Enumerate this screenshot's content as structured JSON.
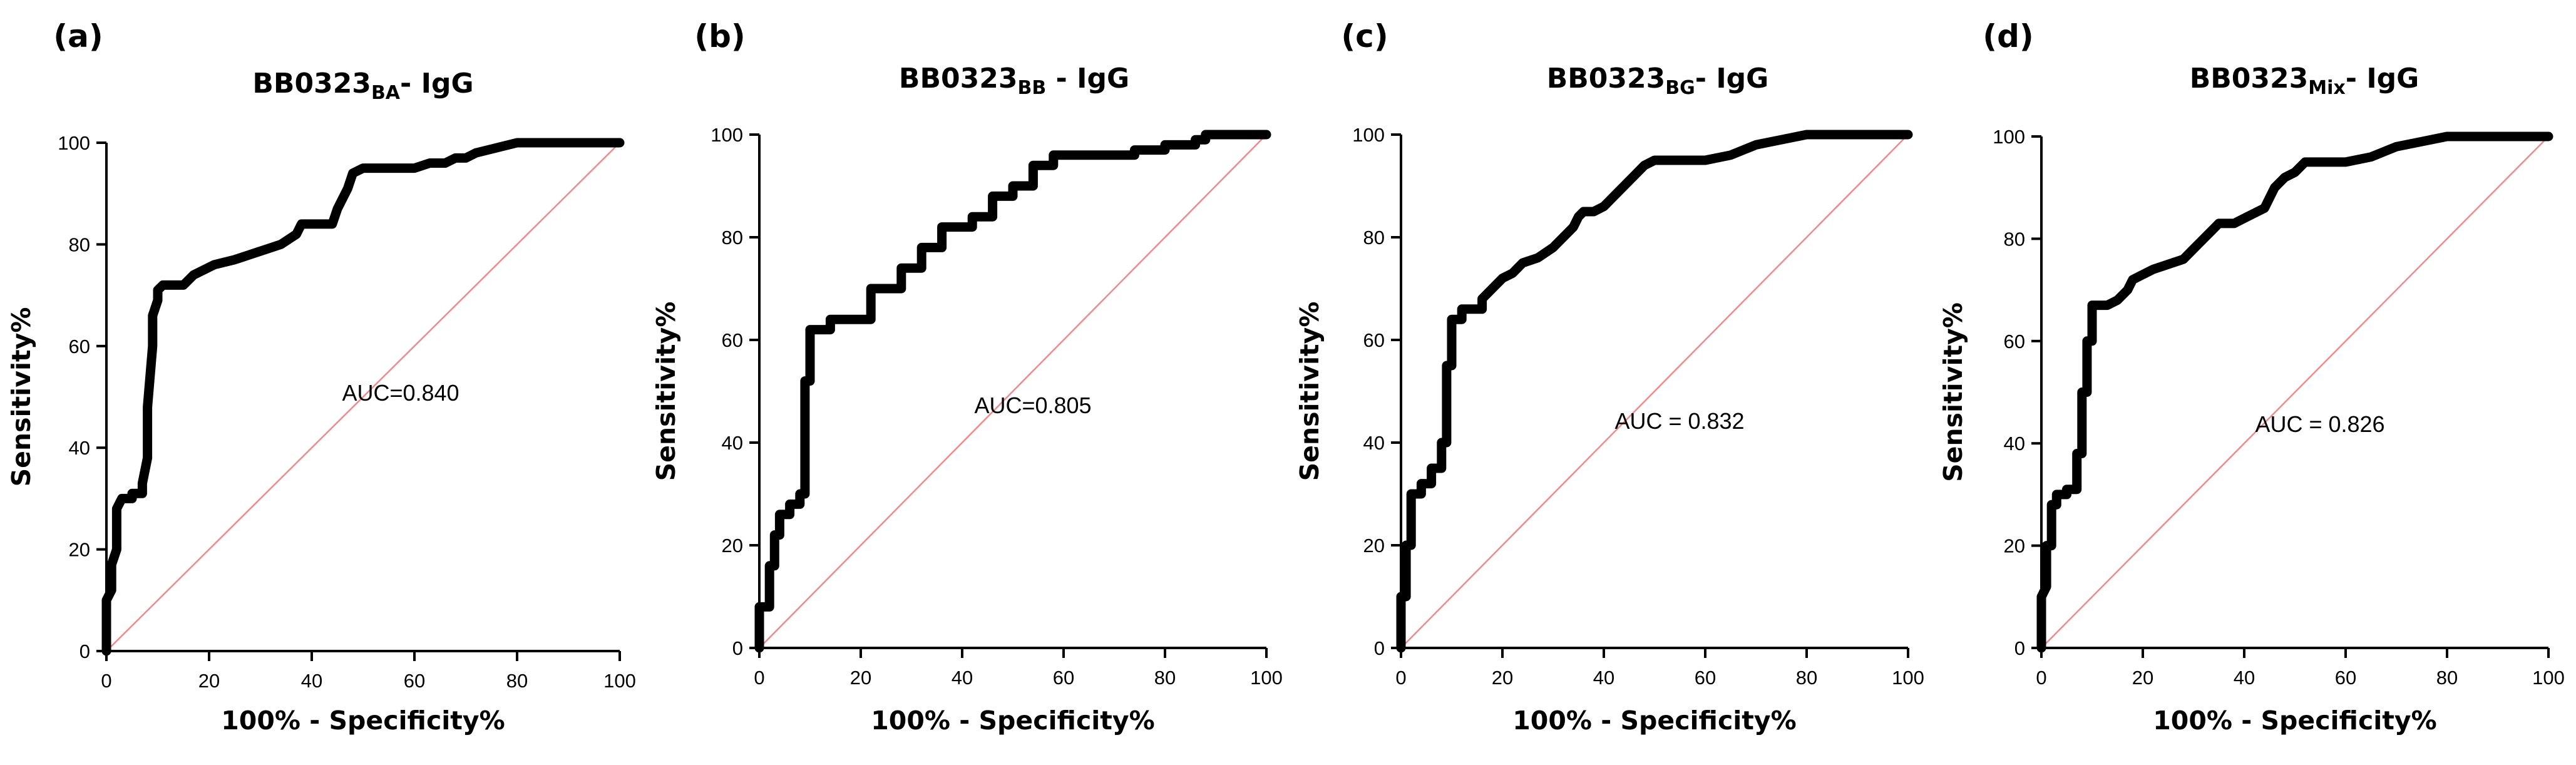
{
  "chart_data": [
    {
      "type": "line",
      "panel_label": "(a)",
      "title_main": "BB0323",
      "title_sub": "BA",
      "title_suffix": "- IgG",
      "xlabel": "100% - Specificity%",
      "ylabel": "Sensitivity%",
      "annotation": "AUC=0.840",
      "xlim": [
        0,
        100
      ],
      "ylim": [
        0,
        100
      ],
      "xticks": [
        "0",
        "20",
        "40",
        "60",
        "80",
        "100"
      ],
      "yticks": [
        "0",
        "20",
        "40",
        "60",
        "80",
        "100"
      ],
      "series": [
        {
          "name": "ROC",
          "x": [
            0,
            0,
            1,
            1,
            2,
            2,
            3,
            3,
            5,
            5,
            7,
            7,
            8,
            8,
            9,
            9,
            10,
            10,
            11,
            12,
            15,
            17,
            19,
            21,
            25,
            28,
            31,
            34,
            37,
            38,
            40,
            44,
            45,
            47,
            48,
            50,
            56,
            60,
            63,
            66,
            68,
            70,
            72,
            76,
            80,
            100
          ],
          "y": [
            0,
            10,
            12,
            17,
            20,
            28,
            30,
            30,
            30,
            31,
            31,
            33,
            38,
            48,
            60,
            66,
            69,
            71,
            72,
            72,
            72,
            74,
            75,
            76,
            77,
            78,
            79,
            80,
            82,
            84,
            84,
            84,
            87,
            91,
            94,
            95,
            95,
            95,
            96,
            96,
            97,
            97,
            98,
            99,
            100,
            100
          ]
        },
        {
          "name": "Reference",
          "x": [
            0,
            100
          ],
          "y": [
            0,
            100
          ]
        }
      ]
    },
    {
      "type": "line",
      "panel_label": "(b)",
      "title_main": "BB0323",
      "title_sub": "BB",
      "title_suffix": " - IgG",
      "xlabel": "100% - Specificity%",
      "ylabel": "Sensitivity%",
      "annotation": "AUC=0.805",
      "xlim": [
        0,
        100
      ],
      "ylim": [
        0,
        100
      ],
      "xticks": [
        "0",
        "20",
        "40",
        "60",
        "80",
        "100"
      ],
      "yticks": [
        "0",
        "20",
        "40",
        "60",
        "80",
        "100"
      ],
      "series": [
        {
          "name": "ROC",
          "x": [
            0,
            0,
            2,
            2,
            3,
            3,
            4,
            4,
            6,
            6,
            8,
            8,
            9,
            9,
            10,
            10,
            14,
            14,
            18,
            18,
            22,
            22,
            28,
            28,
            32,
            32,
            36,
            36,
            42,
            42,
            46,
            46,
            50,
            50,
            54,
            54,
            58,
            58,
            62,
            62,
            74,
            74,
            80,
            80,
            86,
            86,
            88,
            88,
            100
          ],
          "y": [
            0,
            8,
            8,
            16,
            16,
            22,
            22,
            26,
            26,
            28,
            28,
            30,
            30,
            52,
            52,
            62,
            62,
            64,
            64,
            64,
            64,
            70,
            70,
            74,
            74,
            78,
            78,
            82,
            82,
            84,
            84,
            88,
            88,
            90,
            90,
            94,
            94,
            96,
            96,
            96,
            96,
            97,
            97,
            98,
            98,
            99,
            99,
            100,
            100
          ]
        },
        {
          "name": "Reference",
          "x": [
            0,
            100
          ],
          "y": [
            0,
            100
          ]
        }
      ]
    },
    {
      "type": "line",
      "panel_label": "(c)",
      "title_main": "BB0323",
      "title_sub": "BG",
      "title_suffix": "- IgG",
      "xlabel": "100% - Specificity%",
      "ylabel": "Sensitivity%",
      "annotation": "AUC = 0.832",
      "xlim": [
        0,
        100
      ],
      "ylim": [
        0,
        100
      ],
      "xticks": [
        "0",
        "20",
        "40",
        "60",
        "80",
        "100"
      ],
      "yticks": [
        "0",
        "20",
        "40",
        "60",
        "80",
        "100"
      ],
      "series": [
        {
          "name": "ROC",
          "x": [
            0,
            0,
            1,
            1,
            2,
            2,
            4,
            4,
            6,
            6,
            8,
            8,
            9,
            9,
            10,
            10,
            12,
            12,
            16,
            16,
            18,
            20,
            22,
            24,
            27,
            30,
            32,
            34,
            35,
            36,
            38,
            40,
            42,
            44,
            46,
            48,
            50,
            55,
            60,
            65,
            70,
            75,
            80,
            100
          ],
          "y": [
            0,
            10,
            10,
            20,
            20,
            30,
            30,
            32,
            32,
            35,
            35,
            40,
            40,
            55,
            55,
            64,
            64,
            66,
            66,
            68,
            70,
            72,
            73,
            75,
            76,
            78,
            80,
            82,
            84,
            85,
            85,
            86,
            88,
            90,
            92,
            94,
            95,
            95,
            95,
            96,
            98,
            99,
            100,
            100
          ]
        },
        {
          "name": "Reference",
          "x": [
            0,
            100
          ],
          "y": [
            0,
            100
          ]
        }
      ]
    },
    {
      "type": "line",
      "panel_label": "(d)",
      "title_main": "BB0323",
      "title_sub": "Mix",
      "title_suffix": "- IgG",
      "xlabel": "100% - Specificity%",
      "ylabel": "Sensitivity%",
      "annotation": "AUC = 0.826",
      "xlim": [
        0,
        100
      ],
      "ylim": [
        0,
        100
      ],
      "xticks": [
        "0",
        "20",
        "40",
        "60",
        "80",
        "100"
      ],
      "yticks": [
        "0",
        "20",
        "40",
        "60",
        "80",
        "100"
      ],
      "series": [
        {
          "name": "ROC",
          "x": [
            0,
            0,
            1,
            1,
            2,
            2,
            3,
            3,
            5,
            5,
            7,
            7,
            8,
            8,
            9,
            9,
            10,
            10,
            13,
            15,
            17,
            18,
            20,
            22,
            25,
            28,
            30,
            32,
            34,
            35,
            38,
            40,
            42,
            44,
            45,
            46,
            48,
            50,
            52,
            60,
            65,
            70,
            75,
            80,
            100
          ],
          "y": [
            0,
            10,
            12,
            20,
            20,
            28,
            28,
            30,
            30,
            31,
            31,
            38,
            38,
            50,
            50,
            60,
            60,
            67,
            67,
            68,
            70,
            72,
            73,
            74,
            75,
            76,
            78,
            80,
            82,
            83,
            83,
            84,
            85,
            86,
            88,
            90,
            92,
            93,
            95,
            95,
            96,
            98,
            99,
            100,
            100
          ]
        },
        {
          "name": "Reference",
          "x": [
            0,
            100
          ],
          "y": [
            0,
            100
          ]
        }
      ]
    }
  ]
}
